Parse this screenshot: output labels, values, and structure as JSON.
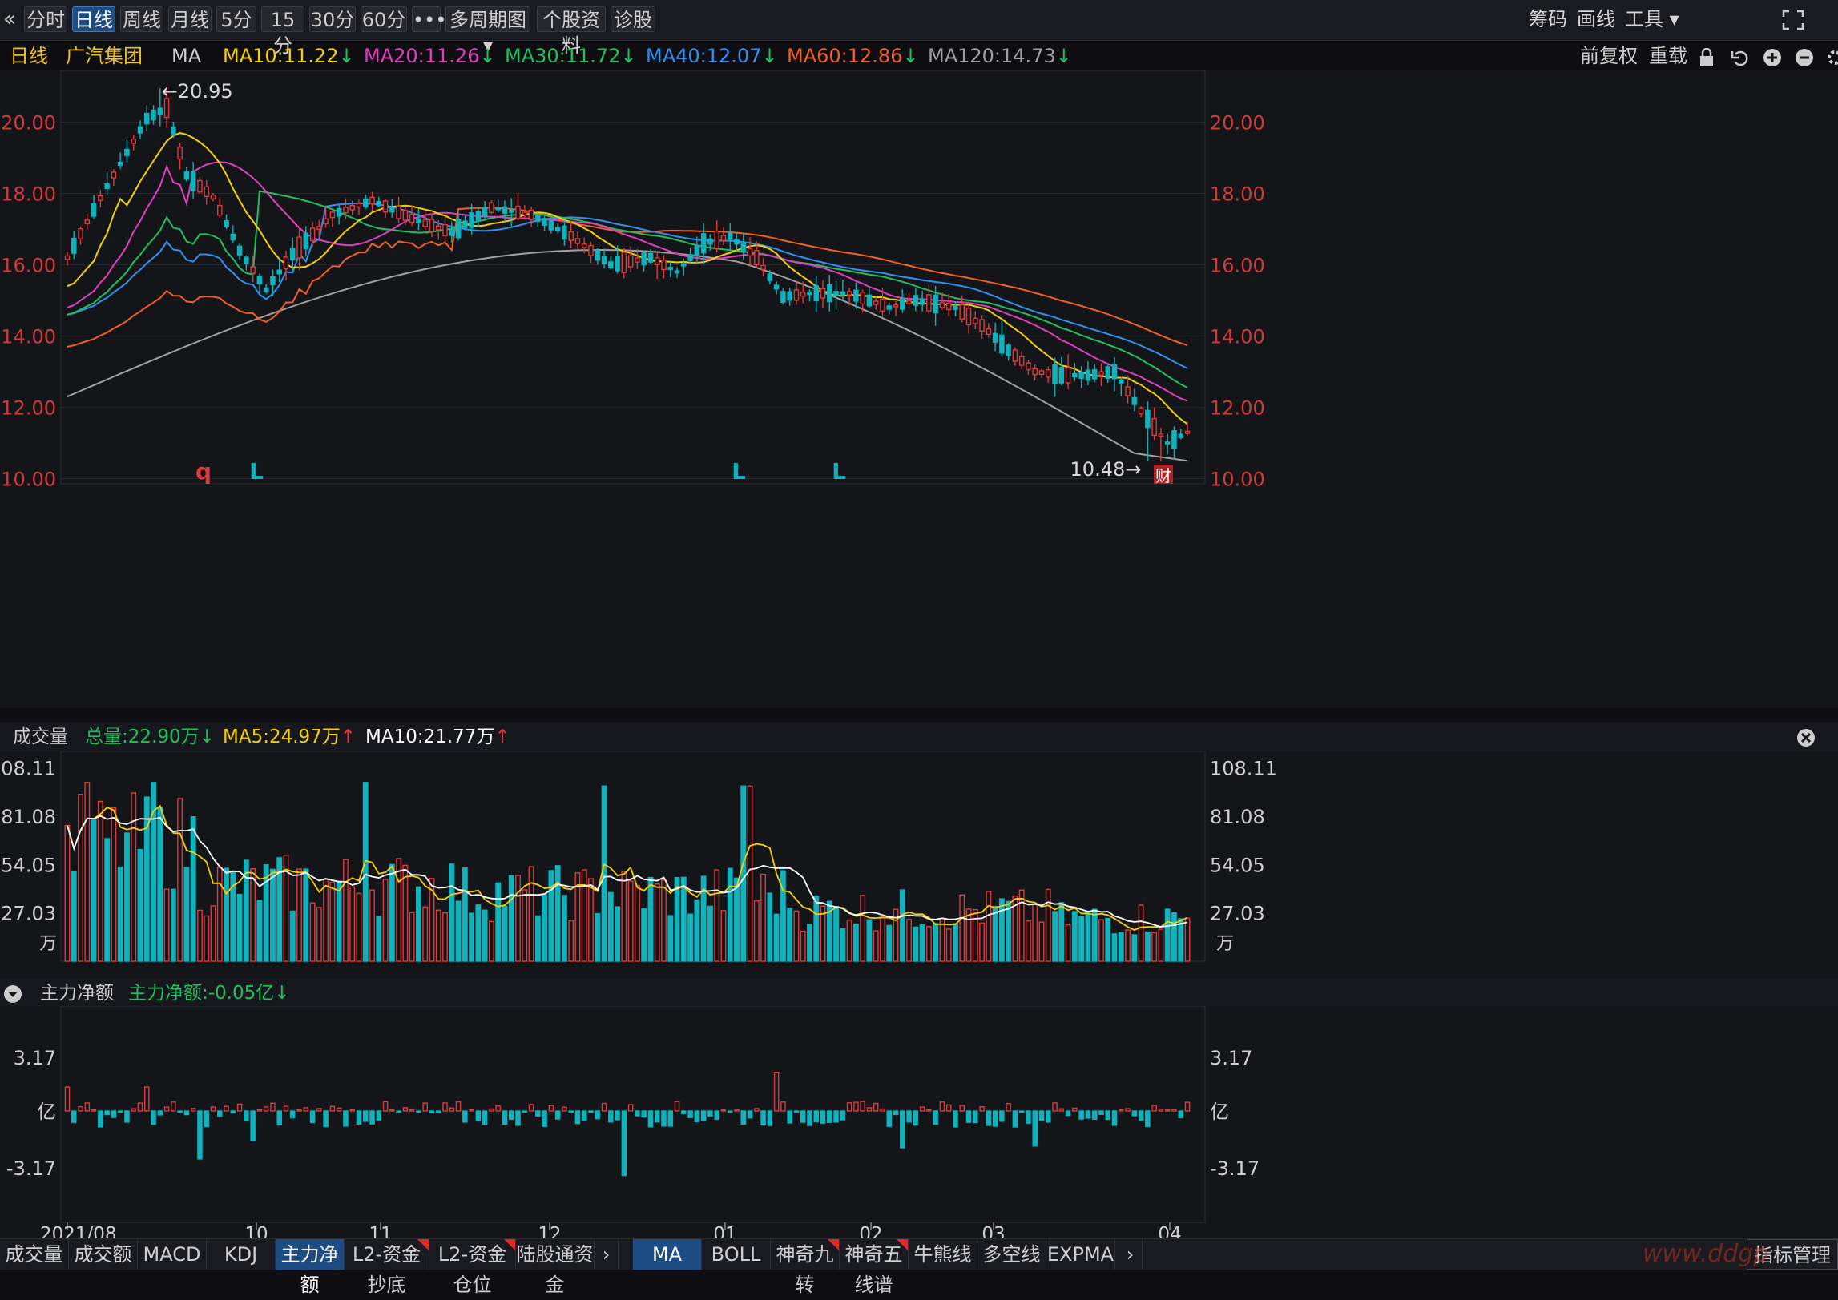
{
  "toolbar": {
    "collapse_icon": "double-chevron-left-icon",
    "buttons": [
      "分时",
      "日线",
      "周线",
      "月线",
      "5分",
      "15分",
      "30分",
      "60分",
      "•••",
      "多周期图 ▾",
      "个股资料",
      "诊股"
    ],
    "active": "日线",
    "right": [
      "筹码",
      "画线",
      "工具 ▾"
    ],
    "fullscreen_icon": "expand-icon"
  },
  "info": {
    "period": "日线",
    "stock_name": "广汽集团",
    "ma_label": "MA",
    "ma10": "MA10:11.22",
    "ma20": "MA20:11.26",
    "ma30": "MA30:11.72",
    "ma40": "MA40:12.07",
    "ma60": "MA60:12.86",
    "ma120": "MA120:14.73",
    "fq": "前复权",
    "reload": "重载",
    "down_arrow": "↓"
  },
  "colors": {
    "up": "#e03a3a",
    "down": "#0fb3be",
    "ma10": "#f5d000",
    "ma20": "#e040c0",
    "ma30": "#20c060",
    "ma40": "#3090f0",
    "ma60": "#f06020",
    "ma120": "#a0a0a0",
    "accent": "#1d4c83"
  },
  "price_panel": {
    "y_ticks": [
      "20.00",
      "18.00",
      "16.00",
      "14.00",
      "12.00",
      "10.00"
    ],
    "high_label": "←20.95",
    "low_label": "10.48→",
    "markers": [
      {
        "text": "q",
        "color": "#e03a3a"
      },
      {
        "text": "L",
        "color": "#0fb3be"
      },
      {
        "text": "L",
        "color": "#0fb3be"
      },
      {
        "text": "L",
        "color": "#0fb3be"
      }
    ],
    "cai_badge": "财"
  },
  "volume_panel": {
    "title": "成交量",
    "total": "总量:22.90万",
    "ma5": "MA5:24.97万",
    "ma10": "MA10:21.77万",
    "y_ticks": [
      "108.11",
      "81.08",
      "54.05",
      "27.03"
    ],
    "unit": "万"
  },
  "flow_panel": {
    "title": "主力净额",
    "value": "主力净额:-0.05亿",
    "y_ticks": [
      "3.17",
      "亿",
      "-3.17"
    ]
  },
  "x_axis": {
    "labels": [
      "2021/08",
      "10",
      "11",
      "12",
      "01",
      "02",
      "03",
      "04"
    ]
  },
  "bottom_tabs_left": [
    "成交量",
    "成交额",
    "MACD",
    "KDJ",
    "主力净额",
    "L2-资金抄底",
    "L2-资金仓位",
    "陆股通资金"
  ],
  "bottom_tabs_left_active": "主力净额",
  "bottom_tabs_right": [
    "MA",
    "BOLL",
    "神奇九转",
    "神奇五线谱",
    "牛熊线",
    "多空线",
    "EXPMA"
  ],
  "bottom_tabs_right_active": "MA",
  "bottom_last": "指标管理",
  "watermark": "www.ddgp"
}
